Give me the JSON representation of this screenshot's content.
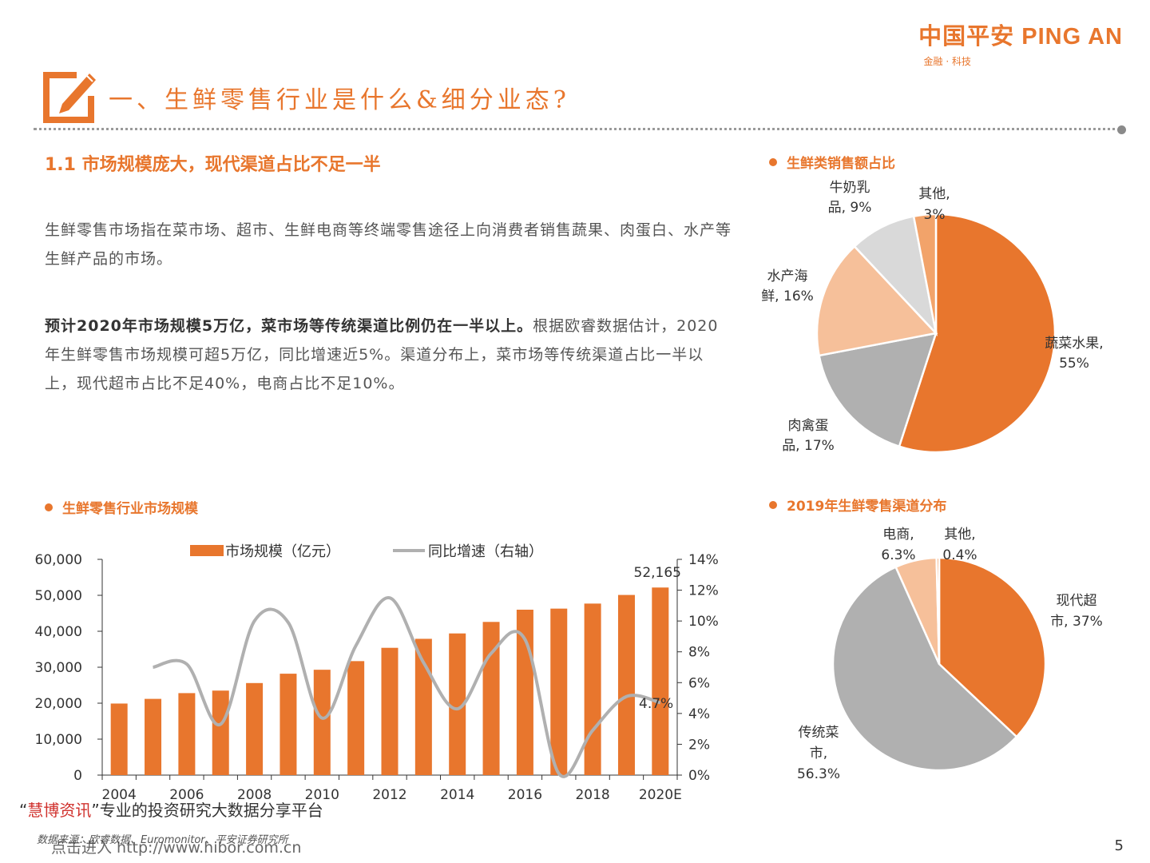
{
  "header": {
    "logo_text": "中国平安 PING AN",
    "logo_sub": "金融 · 科技",
    "page_title": "一、生鲜零售行业是什么&细分业态?"
  },
  "section": {
    "heading": "1.1  市场规模庞大，现代渠道占比不足一半",
    "p1": "生鲜零售市场指在菜市场、超市、生鲜电商等终端零售途径上向消费者销售蔬果、肉蛋白、水产等生鲜产品的市场。",
    "p2_bold": "预计2020年市场规模5万亿，菜市场等传统渠道比例仍在一半以上。",
    "p2_rest": "根据欧睿数据估计，2020年生鲜零售市场规模可超5万亿，同比增速近5%。渠道分布上，菜市场等传统渠道占比一半以上，现代超市占比不足40%，电商占比不足10%。"
  },
  "colors": {
    "accent": "#e8762d",
    "gray": "#b0b0b0",
    "light_gray": "#d9d9d9",
    "peach": "#f6c09a"
  },
  "chart_data": [
    {
      "type": "bar",
      "title": "生鲜零售行业市场规模",
      "categories": [
        "2004",
        "2005",
        "2006",
        "2007",
        "2008",
        "2009",
        "2010",
        "2011",
        "2012",
        "2013",
        "2014",
        "2015",
        "2016",
        "2017",
        "2018",
        "2019",
        "2020E"
      ],
      "x_tick_labels": [
        "2004",
        "2006",
        "2008",
        "2010",
        "2012",
        "2014",
        "2016",
        "2018",
        "2020E"
      ],
      "series": [
        {
          "name": "市场规模（亿元）",
          "type": "bar",
          "axis": "left",
          "values": [
            19900,
            21200,
            22800,
            23500,
            25600,
            28200,
            29300,
            31700,
            35400,
            37900,
            39400,
            42600,
            46000,
            46300,
            47700,
            50100,
            52165
          ]
        },
        {
          "name": "同比增速（右轴）",
          "type": "line",
          "axis": "right",
          "values": [
            null,
            7.0,
            7.2,
            3.3,
            10.0,
            9.9,
            3.7,
            8.4,
            11.5,
            7.3,
            4.3,
            7.9,
            8.8,
            0.1,
            2.9,
            5.1,
            4.7
          ]
        }
      ],
      "y_left": {
        "min": 0,
        "max": 60000,
        "ticks": [
          "0",
          "10,000",
          "20,000",
          "30,000",
          "40,000",
          "50,000",
          "60,000"
        ]
      },
      "y_right": {
        "min": 0,
        "max": 14,
        "ticks": [
          "0%",
          "2%",
          "4%",
          "6%",
          "8%",
          "10%",
          "12%",
          "14%"
        ]
      },
      "data_labels": {
        "last_bar": "52,165",
        "last_growth": "4.7%"
      },
      "legend": "top"
    },
    {
      "type": "pie",
      "title": "生鲜类销售额占比",
      "slices": [
        {
          "label": "蔬菜水果,",
          "pct_label": "55%",
          "value": 55
        },
        {
          "label": "肉禽蛋",
          "label2": "品,",
          "pct_label": "17%",
          "value": 17
        },
        {
          "label": "水产海",
          "label2": "鲜,",
          "pct_label": "16%",
          "value": 16
        },
        {
          "label": "牛奶乳",
          "label2": "品,",
          "pct_label": "9%",
          "value": 9
        },
        {
          "label": "其他,",
          "pct_label": "3%",
          "value": 3
        }
      ]
    },
    {
      "type": "pie",
      "title": "2019年生鲜零售渠道分布",
      "slices": [
        {
          "label": "现代超",
          "label2": "市,",
          "pct_label": "37%",
          "value": 37
        },
        {
          "label": "传统菜",
          "label2": "市,",
          "pct_label": "56.3%",
          "value": 56.3
        },
        {
          "label": "电商,",
          "pct_label": "6.3%",
          "value": 6.3
        },
        {
          "label": "其他,",
          "pct_label": "0.4%",
          "value": 0.4
        }
      ]
    }
  ],
  "footer": {
    "watermark_open": "“",
    "watermark_brand": "慧博资讯",
    "watermark_rest": "”专业的投资研究大数据分享平台",
    "source": "数据来源：欧睿数据、Euromonitor、平安证券研究所",
    "source_link": "点击进入 http://www.hibor.com.cn",
    "page_number": "5"
  }
}
